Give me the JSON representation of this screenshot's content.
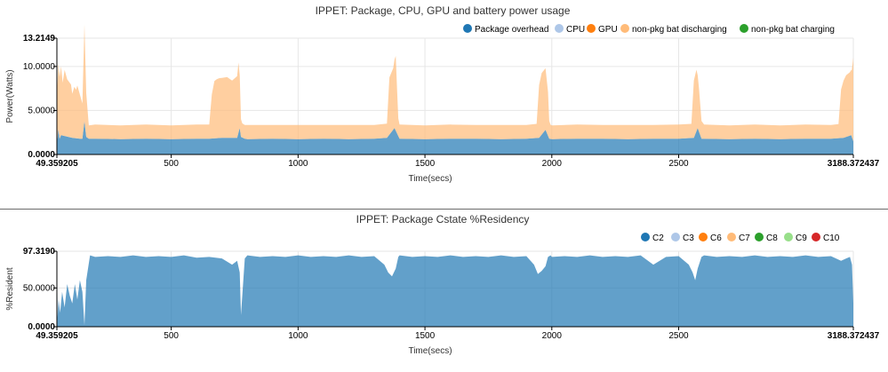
{
  "chart_data": [
    {
      "type": "area",
      "title": "IPPET: Package, CPU, GPU and battery power usage",
      "xlabel": "Time(secs)",
      "ylabel": "Power(Watts)",
      "xlim": [
        49.359205,
        3188.372437
      ],
      "ylim": [
        0,
        13.2149
      ],
      "x_ticks": [
        "49.359205",
        "500",
        "1000",
        "1500",
        "2000",
        "2500",
        "3188.372437"
      ],
      "y_ticks": [
        "0.0000",
        "5.0000",
        "10.0000",
        "13.2149"
      ],
      "legend": "top-right",
      "stacked": true,
      "series": [
        {
          "name": "Package overhead",
          "color": "#1f77b4",
          "x": [
            49.4,
            55,
            60,
            66,
            110,
            140,
            150,
            158,
            165,
            175,
            200,
            300,
            400,
            500,
            600,
            650,
            700,
            760,
            770,
            775,
            790,
            800,
            900,
            1000,
            1100,
            1200,
            1300,
            1350,
            1380,
            1400,
            1500,
            1600,
            1700,
            1800,
            1900,
            1950,
            1975,
            1990,
            2000,
            2100,
            2200,
            2300,
            2400,
            2500,
            2560,
            2575,
            2590,
            2700,
            2800,
            2900,
            3000,
            3100,
            3150,
            3180,
            3188.4
          ],
          "values": [
            1.2,
            2.9,
            1.8,
            2.2,
            1.9,
            1.8,
            1.8,
            3.8,
            2.0,
            1.8,
            1.8,
            1.75,
            1.8,
            1.75,
            1.8,
            1.8,
            1.9,
            1.9,
            3.0,
            2.0,
            1.8,
            1.75,
            1.8,
            1.75,
            1.8,
            1.75,
            1.8,
            1.9,
            3.0,
            1.8,
            1.75,
            1.8,
            1.8,
            1.75,
            1.8,
            1.9,
            2.8,
            1.8,
            1.75,
            1.8,
            1.8,
            1.75,
            1.8,
            1.8,
            1.9,
            3.0,
            1.8,
            1.75,
            1.8,
            1.75,
            1.8,
            1.8,
            1.9,
            2.2,
            1.5
          ]
        },
        {
          "name": "CPU",
          "color": "#aec7e8",
          "x": [
            49.4,
            3188.4
          ],
          "values": [
            0,
            0
          ]
        },
        {
          "name": "GPU",
          "color": "#ff7f0e",
          "x": [
            49.4,
            3188.4
          ],
          "values": [
            0,
            0
          ]
        },
        {
          "name": "non-pkg bat discharging",
          "color": "#ffbb78",
          "x": [
            49.4,
            52,
            56,
            60,
            66,
            72,
            80,
            90,
            105,
            110,
            118,
            125,
            130,
            140,
            150,
            158,
            165,
            175,
            200,
            300,
            400,
            500,
            600,
            650,
            660,
            670,
            680,
            690,
            700,
            720,
            740,
            760,
            765,
            770,
            775,
            780,
            790,
            800,
            900,
            1000,
            1100,
            1200,
            1300,
            1350,
            1360,
            1375,
            1385,
            1390,
            1395,
            1400,
            1500,
            1600,
            1700,
            1800,
            1900,
            1940,
            1950,
            1960,
            1975,
            1985,
            1990,
            1995,
            2000,
            2100,
            2200,
            2300,
            2400,
            2500,
            2550,
            2560,
            2570,
            2580,
            2590,
            2600,
            2700,
            2800,
            2900,
            3000,
            3100,
            3130,
            3140,
            3150,
            3160,
            3175,
            3182,
            3188.4
          ],
          "values": [
            5.5,
            6.5,
            7.5,
            7.0,
            7.8,
            6.0,
            7.5,
            6.5,
            6.0,
            5.0,
            5.8,
            5.5,
            6.0,
            5.0,
            4.0,
            11.0,
            5.0,
            1.5,
            1.6,
            1.55,
            1.6,
            1.55,
            1.6,
            1.6,
            5.0,
            6.5,
            6.7,
            6.8,
            6.8,
            6.9,
            6.5,
            7.0,
            8.0,
            6.0,
            2.0,
            1.6,
            1.55,
            1.6,
            1.55,
            1.6,
            1.55,
            1.6,
            1.55,
            1.6,
            6.5,
            7.0,
            8.5,
            5.0,
            2.0,
            1.6,
            1.55,
            1.6,
            1.55,
            1.6,
            1.55,
            1.6,
            6.0,
            7.0,
            7.0,
            5.0,
            2.0,
            1.6,
            1.55,
            1.6,
            1.55,
            1.6,
            1.55,
            1.6,
            1.6,
            6.5,
            7.0,
            5.0,
            2.0,
            1.6,
            1.55,
            1.6,
            1.55,
            1.6,
            1.55,
            1.6,
            5.5,
            6.5,
            7.0,
            7.2,
            7.5,
            9.5
          ]
        },
        {
          "name": "non-pkg bat charging",
          "color": "#2ca02c",
          "x": [
            49.4,
            3188.4
          ],
          "values": [
            0,
            0
          ]
        }
      ]
    },
    {
      "type": "area",
      "title": "IPPET: Package Cstate %Residency",
      "xlabel": "Time(secs)",
      "ylabel": "%Resident",
      "xlim": [
        49.359205,
        3188.372437
      ],
      "ylim": [
        0,
        97.319
      ],
      "x_ticks": [
        "49.359205",
        "500",
        "1000",
        "1500",
        "2000",
        "2500",
        "3188.372437"
      ],
      "y_ticks": [
        "0.0000",
        "50.0000",
        "97.3190"
      ],
      "legend": "top-right",
      "series": [
        {
          "name": "C2",
          "color": "#1f77b4",
          "x": [
            49.4,
            52,
            56,
            62,
            70,
            80,
            90,
            100,
            110,
            120,
            130,
            140,
            150,
            158,
            165,
            180,
            200,
            250,
            300,
            350,
            400,
            450,
            500,
            550,
            600,
            650,
            700,
            740,
            760,
            770,
            775,
            790,
            800,
            850,
            900,
            950,
            1000,
            1050,
            1100,
            1150,
            1200,
            1250,
            1300,
            1340,
            1355,
            1370,
            1385,
            1395,
            1400,
            1450,
            1500,
            1550,
            1600,
            1650,
            1700,
            1750,
            1800,
            1850,
            1900,
            1930,
            1945,
            1960,
            1975,
            1985,
            1995,
            2000,
            2050,
            2100,
            2150,
            2200,
            2250,
            2300,
            2350,
            2400,
            2450,
            2500,
            2540,
            2555,
            2565,
            2575,
            2590,
            2600,
            2650,
            2700,
            2750,
            2800,
            2850,
            2900,
            2950,
            3000,
            3050,
            3100,
            3140,
            3160,
            3175,
            3183,
            3188.4
          ],
          "values": [
            97.3,
            12,
            35,
            18,
            45,
            25,
            55,
            40,
            30,
            55,
            35,
            60,
            45,
            2,
            60,
            92,
            90,
            91,
            90,
            92,
            90,
            91,
            90,
            92,
            89,
            90,
            88,
            80,
            85,
            70,
            15,
            88,
            92,
            90,
            91,
            90,
            92,
            90,
            91,
            90,
            92,
            90,
            91,
            80,
            70,
            65,
            75,
            90,
            92,
            90,
            91,
            90,
            92,
            90,
            91,
            90,
            92,
            90,
            91,
            80,
            68,
            72,
            78,
            90,
            92,
            90,
            91,
            90,
            92,
            90,
            91,
            90,
            92,
            80,
            90,
            91,
            80,
            70,
            60,
            75,
            90,
            92,
            90,
            91,
            90,
            92,
            90,
            91,
            90,
            92,
            90,
            91,
            85,
            88,
            90,
            80,
            30
          ]
        },
        {
          "name": "C3",
          "color": "#aec7e8",
          "x": [
            49.4,
            3188.4
          ],
          "values": [
            0,
            0
          ]
        },
        {
          "name": "C6",
          "color": "#ff7f0e",
          "x": [
            49.4,
            3188.4
          ],
          "values": [
            0,
            0
          ]
        },
        {
          "name": "C7",
          "color": "#ffbb78",
          "x": [
            49.4,
            3188.4
          ],
          "values": [
            0,
            0
          ]
        },
        {
          "name": "C8",
          "color": "#2ca02c",
          "x": [
            49.4,
            3188.4
          ],
          "values": [
            0,
            0
          ]
        },
        {
          "name": "C9",
          "color": "#98df8a",
          "x": [
            49.4,
            3188.4
          ],
          "values": [
            0,
            0
          ]
        },
        {
          "name": "C10",
          "color": "#d62728",
          "x": [
            49.4,
            3188.4
          ],
          "values": [
            0,
            0
          ]
        }
      ]
    }
  ]
}
